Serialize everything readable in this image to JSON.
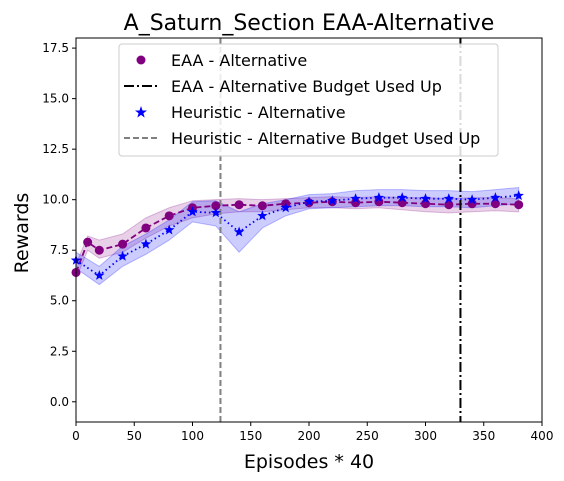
{
  "chart_data": {
    "type": "line",
    "title": "A_Saturn_Section EAA-Alternative",
    "xlabel": "Episodes * 40",
    "ylabel": "Rewards",
    "xlim": [
      0,
      400
    ],
    "ylim": [
      -1.0,
      18.0
    ],
    "xticks": [
      0,
      50,
      100,
      150,
      200,
      250,
      300,
      350,
      400
    ],
    "yticks": [
      0.0,
      2.5,
      5.0,
      7.5,
      10.0,
      12.5,
      15.0,
      17.5
    ],
    "xtick_labels": [
      "0",
      "50",
      "100",
      "150",
      "200",
      "250",
      "300",
      "350",
      "400"
    ],
    "ytick_labels": [
      "0.0",
      "2.5",
      "5.0",
      "7.5",
      "10.0",
      "12.5",
      "15.0",
      "17.5"
    ],
    "grid": false,
    "legend_position": "top-center",
    "series": [
      {
        "name": "EAA - Alternative",
        "color": "#800080",
        "line_style": "dashed",
        "marker": "circle",
        "x": [
          0,
          10,
          20,
          40,
          60,
          80,
          100,
          120,
          140,
          160,
          180,
          200,
          220,
          240,
          260,
          280,
          300,
          320,
          340,
          360,
          380
        ],
        "y": [
          6.4,
          7.9,
          7.5,
          7.8,
          8.6,
          9.2,
          9.6,
          9.7,
          9.75,
          9.7,
          9.8,
          9.85,
          9.9,
          9.85,
          9.9,
          9.85,
          9.8,
          9.75,
          9.8,
          9.8,
          9.75
        ],
        "lower": [
          6.1,
          7.5,
          7.1,
          7.4,
          8.1,
          8.7,
          9.1,
          9.3,
          9.4,
          9.4,
          9.5,
          9.6,
          9.6,
          9.55,
          9.6,
          9.5,
          9.4,
          9.35,
          9.4,
          9.45,
          9.4
        ],
        "upper": [
          6.8,
          8.2,
          8.0,
          8.3,
          9.1,
          9.6,
          9.95,
          10.0,
          10.05,
          10.0,
          10.05,
          10.1,
          10.15,
          10.1,
          10.15,
          10.1,
          10.1,
          10.05,
          10.1,
          10.1,
          10.05
        ]
      },
      {
        "name": "Heuristic - Alternative",
        "color": "#0000ff",
        "line_style": "dotted",
        "marker": "star",
        "x": [
          0,
          20,
          40,
          60,
          80,
          100,
          120,
          140,
          160,
          180,
          200,
          220,
          240,
          260,
          280,
          300,
          320,
          340,
          360,
          380
        ],
        "y": [
          7.0,
          6.25,
          7.2,
          7.8,
          8.5,
          9.4,
          9.35,
          8.4,
          9.2,
          9.6,
          9.9,
          9.95,
          10.05,
          10.1,
          10.1,
          10.05,
          10.05,
          10.0,
          10.1,
          10.2
        ],
        "lower": [
          6.6,
          5.8,
          6.7,
          7.3,
          8.0,
          8.9,
          8.7,
          7.4,
          8.6,
          9.2,
          9.55,
          9.6,
          9.65,
          9.7,
          9.7,
          9.65,
          9.65,
          9.6,
          9.7,
          9.8
        ],
        "upper": [
          7.4,
          6.7,
          7.7,
          8.3,
          9.0,
          9.9,
          9.95,
          9.4,
          9.8,
          10.0,
          10.25,
          10.3,
          10.45,
          10.5,
          10.5,
          10.45,
          10.45,
          10.4,
          10.5,
          10.6
        ]
      }
    ],
    "vlines": [
      {
        "name": "EAA - Alternative Budget Used Up",
        "x": 330,
        "color": "#000000",
        "line_style": "dashdot"
      },
      {
        "name": "Heuristic - Alternative Budget Used Up",
        "x": 124,
        "color": "#808080",
        "line_style": "dashed"
      }
    ]
  }
}
